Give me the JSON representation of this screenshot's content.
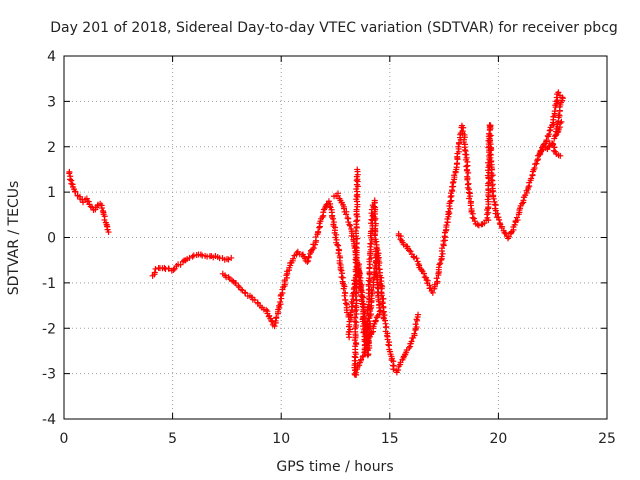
{
  "chart_data": {
    "type": "scatter",
    "title": "Day 201 of 2018, Sidereal Day-to-day VTEC variation (SDTVAR) for receiver pbcg",
    "xlabel": "GPS time / hours",
    "ylabel": "SDTVAR / TECUs",
    "xlim": [
      0,
      25
    ],
    "ylim": [
      -4,
      4
    ],
    "xticks": [
      "0",
      "5",
      "10",
      "15",
      "20",
      "25"
    ],
    "yticks": [
      "4",
      "3",
      "2",
      "1",
      "0",
      "-1",
      "-2",
      "-3",
      "-4"
    ],
    "grid": true,
    "marker": "+",
    "color": "#ff0000",
    "series": [
      {
        "segments": [
          [
            [
              0.25,
              1.45
            ],
            [
              0.35,
              1.2
            ],
            [
              0.45,
              1.05
            ],
            [
              0.6,
              0.95
            ],
            [
              0.75,
              0.85
            ],
            [
              0.9,
              0.8
            ],
            [
              1.05,
              0.85
            ],
            [
              1.2,
              0.75
            ],
            [
              1.35,
              0.6
            ],
            [
              1.5,
              0.65
            ],
            [
              1.65,
              0.75
            ],
            [
              1.8,
              0.6
            ],
            [
              1.9,
              0.35
            ],
            [
              2.05,
              0.12
            ]
          ],
          [
            [
              4.1,
              -0.85
            ],
            [
              4.25,
              -0.7
            ],
            [
              4.45,
              -0.65
            ],
            [
              4.7,
              -0.68
            ],
            [
              4.95,
              -0.72
            ],
            [
              5.2,
              -0.65
            ],
            [
              5.45,
              -0.55
            ],
            [
              5.7,
              -0.48
            ],
            [
              6.0,
              -0.42
            ],
            [
              6.3,
              -0.38
            ],
            [
              6.6,
              -0.4
            ],
            [
              6.9,
              -0.42
            ],
            [
              7.2,
              -0.45
            ],
            [
              7.5,
              -0.48
            ],
            [
              7.7,
              -0.45
            ]
          ],
          [
            [
              7.3,
              -0.8
            ],
            [
              7.55,
              -0.88
            ],
            [
              7.8,
              -0.95
            ],
            [
              8.05,
              -1.1
            ],
            [
              8.3,
              -1.2
            ],
            [
              8.55,
              -1.3
            ],
            [
              8.8,
              -1.4
            ],
            [
              9.05,
              -1.5
            ],
            [
              9.3,
              -1.6
            ],
            [
              9.5,
              -1.8
            ],
            [
              9.7,
              -1.95
            ],
            [
              9.85,
              -1.65
            ],
            [
              10.05,
              -1.2
            ],
            [
              10.3,
              -0.75
            ],
            [
              10.55,
              -0.45
            ],
            [
              10.8,
              -0.32
            ],
            [
              11.0,
              -0.4
            ],
            [
              11.2,
              -0.55
            ],
            [
              11.4,
              -0.3
            ],
            [
              11.6,
              -0.05
            ],
            [
              11.8,
              0.3
            ],
            [
              12.0,
              0.6
            ],
            [
              12.2,
              0.8
            ],
            [
              12.35,
              0.5
            ],
            [
              12.5,
              0.1
            ],
            [
              12.65,
              -0.35
            ],
            [
              12.8,
              -0.8
            ],
            [
              12.95,
              -1.3
            ],
            [
              13.1,
              -1.75
            ]
          ],
          [
            [
              12.4,
              0.9
            ],
            [
              12.6,
              0.95
            ],
            [
              12.8,
              0.75
            ],
            [
              13.0,
              0.5
            ],
            [
              13.2,
              0.2
            ],
            [
              13.35,
              -0.1
            ],
            [
              13.5,
              -0.5
            ],
            [
              13.65,
              -1.0
            ],
            [
              13.8,
              -1.6
            ],
            [
              13.9,
              -2.1
            ],
            [
              14.0,
              -2.6
            ],
            [
              14.15,
              -1.3
            ],
            [
              14.3,
              -0.8
            ],
            [
              14.45,
              -0.3
            ],
            [
              14.6,
              -1.0
            ],
            [
              14.75,
              -1.8
            ],
            [
              14.9,
              -2.2
            ],
            [
              15.05,
              -2.6
            ],
            [
              15.2,
              -2.9
            ],
            [
              15.35,
              -2.95
            ],
            [
              15.5,
              -2.8
            ],
            [
              15.7,
              -2.55
            ],
            [
              15.9,
              -2.4
            ],
            [
              16.1,
              -2.2
            ],
            [
              16.3,
              -1.7
            ]
          ],
          [
            [
              13.1,
              -2.2
            ],
            [
              13.25,
              -1.5
            ],
            [
              13.4,
              -0.9
            ],
            [
              13.55,
              -0.6
            ],
            [
              13.7,
              -1.2
            ],
            [
              13.85,
              -2.4
            ],
            [
              14.0,
              -1.8
            ],
            [
              14.1,
              -0.5
            ],
            [
              14.2,
              0.6
            ],
            [
              14.3,
              0.8
            ],
            [
              14.4,
              -0.9
            ],
            [
              14.55,
              -1.6
            ],
            [
              13.4,
              -3.05
            ],
            [
              13.5,
              1.5
            ]
          ],
          [
            [
              15.4,
              0.1
            ],
            [
              15.6,
              -0.1
            ],
            [
              15.85,
              -0.25
            ],
            [
              16.1,
              -0.4
            ],
            [
              16.35,
              -0.6
            ],
            [
              16.6,
              -0.85
            ],
            [
              16.85,
              -1.1
            ],
            [
              17.0,
              -1.2
            ],
            [
              17.15,
              -1.0
            ],
            [
              17.3,
              -0.6
            ],
            [
              17.5,
              -0.1
            ],
            [
              17.7,
              0.5
            ],
            [
              17.9,
              1.1
            ],
            [
              18.1,
              1.7
            ],
            [
              18.25,
              2.2
            ],
            [
              18.35,
              2.45
            ],
            [
              18.5,
              1.9
            ],
            [
              18.6,
              1.2
            ],
            [
              18.75,
              0.6
            ],
            [
              18.9,
              0.35
            ],
            [
              19.1,
              0.25
            ],
            [
              19.3,
              0.3
            ],
            [
              19.5,
              0.4
            ],
            [
              19.6,
              2.5
            ],
            [
              19.65,
              1.8
            ],
            [
              19.75,
              1.0
            ],
            [
              19.9,
              0.55
            ],
            [
              20.1,
              0.3
            ],
            [
              20.25,
              0.1
            ],
            [
              20.45,
              0.0
            ],
            [
              20.65,
              0.15
            ],
            [
              20.85,
              0.4
            ],
            [
              21.05,
              0.7
            ],
            [
              21.25,
              0.95
            ],
            [
              21.45,
              1.2
            ],
            [
              21.65,
              1.5
            ],
            [
              21.85,
              1.8
            ],
            [
              22.05,
              2.0
            ],
            [
              22.25,
              1.95
            ],
            [
              22.45,
              2.1
            ],
            [
              22.65,
              1.85
            ],
            [
              22.85,
              1.8
            ]
          ],
          [
            [
              21.9,
              1.8
            ],
            [
              22.1,
              2.05
            ],
            [
              22.3,
              2.25
            ],
            [
              22.5,
              2.5
            ],
            [
              22.65,
              2.95
            ],
            [
              22.75,
              3.2
            ],
            [
              22.85,
              3.15
            ],
            [
              22.95,
              3.1
            ],
            [
              22.6,
              2.2
            ],
            [
              22.75,
              2.35
            ],
            [
              22.9,
              2.55
            ]
          ]
        ]
      }
    ]
  }
}
